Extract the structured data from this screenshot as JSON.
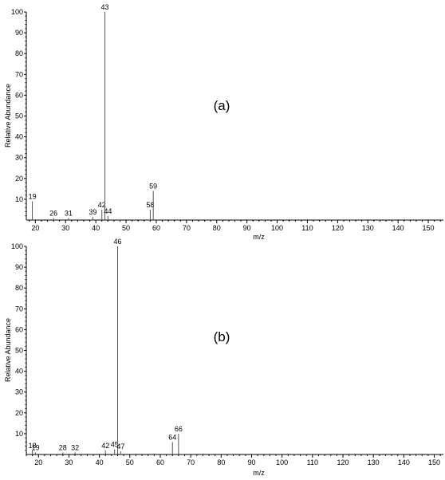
{
  "chart_data": [
    {
      "type": "bar",
      "panel_label": "(a)",
      "xlabel": "m/z",
      "ylabel": "Relative Abundance",
      "xlim": [
        17,
        155
      ],
      "ylim": [
        0,
        100
      ],
      "xticks": [
        20,
        30,
        40,
        50,
        60,
        70,
        80,
        90,
        100,
        110,
        120,
        130,
        140,
        150
      ],
      "yticks": [
        10,
        20,
        30,
        40,
        50,
        60,
        70,
        80,
        90,
        100
      ],
      "peaks": [
        {
          "x": 19,
          "y": 9,
          "label": "19"
        },
        {
          "x": 26,
          "y": 1,
          "label": "26"
        },
        {
          "x": 31,
          "y": 1,
          "label": "31"
        },
        {
          "x": 39,
          "y": 1.5,
          "label": "39"
        },
        {
          "x": 42,
          "y": 5,
          "label": "42"
        },
        {
          "x": 43,
          "y": 100,
          "label": "43"
        },
        {
          "x": 44,
          "y": 2,
          "label": "44"
        },
        {
          "x": 58,
          "y": 5,
          "label": "58"
        },
        {
          "x": 59,
          "y": 14,
          "label": "59"
        }
      ]
    },
    {
      "type": "bar",
      "panel_label": "(b)",
      "xlabel": "m/z",
      "ylabel": "Relative Abundance",
      "xlim": [
        16,
        153
      ],
      "ylim": [
        0,
        100
      ],
      "xticks": [
        20,
        30,
        40,
        50,
        60,
        70,
        80,
        90,
        100,
        110,
        120,
        130,
        140,
        150
      ],
      "yticks": [
        10,
        20,
        30,
        40,
        50,
        60,
        70,
        80,
        90,
        100
      ],
      "peaks": [
        {
          "x": 18,
          "y": 2,
          "label": "18"
        },
        {
          "x": 19,
          "y": 1,
          "label": "19"
        },
        {
          "x": 28,
          "y": 1,
          "label": "28"
        },
        {
          "x": 32,
          "y": 1,
          "label": "32"
        },
        {
          "x": 42,
          "y": 2,
          "label": "42"
        },
        {
          "x": 45,
          "y": 2.5,
          "label": "45"
        },
        {
          "x": 46,
          "y": 100,
          "label": "46"
        },
        {
          "x": 47,
          "y": 1.5,
          "label": "47"
        },
        {
          "x": 64,
          "y": 6,
          "label": "64"
        },
        {
          "x": 66,
          "y": 10,
          "label": "66"
        }
      ]
    }
  ]
}
